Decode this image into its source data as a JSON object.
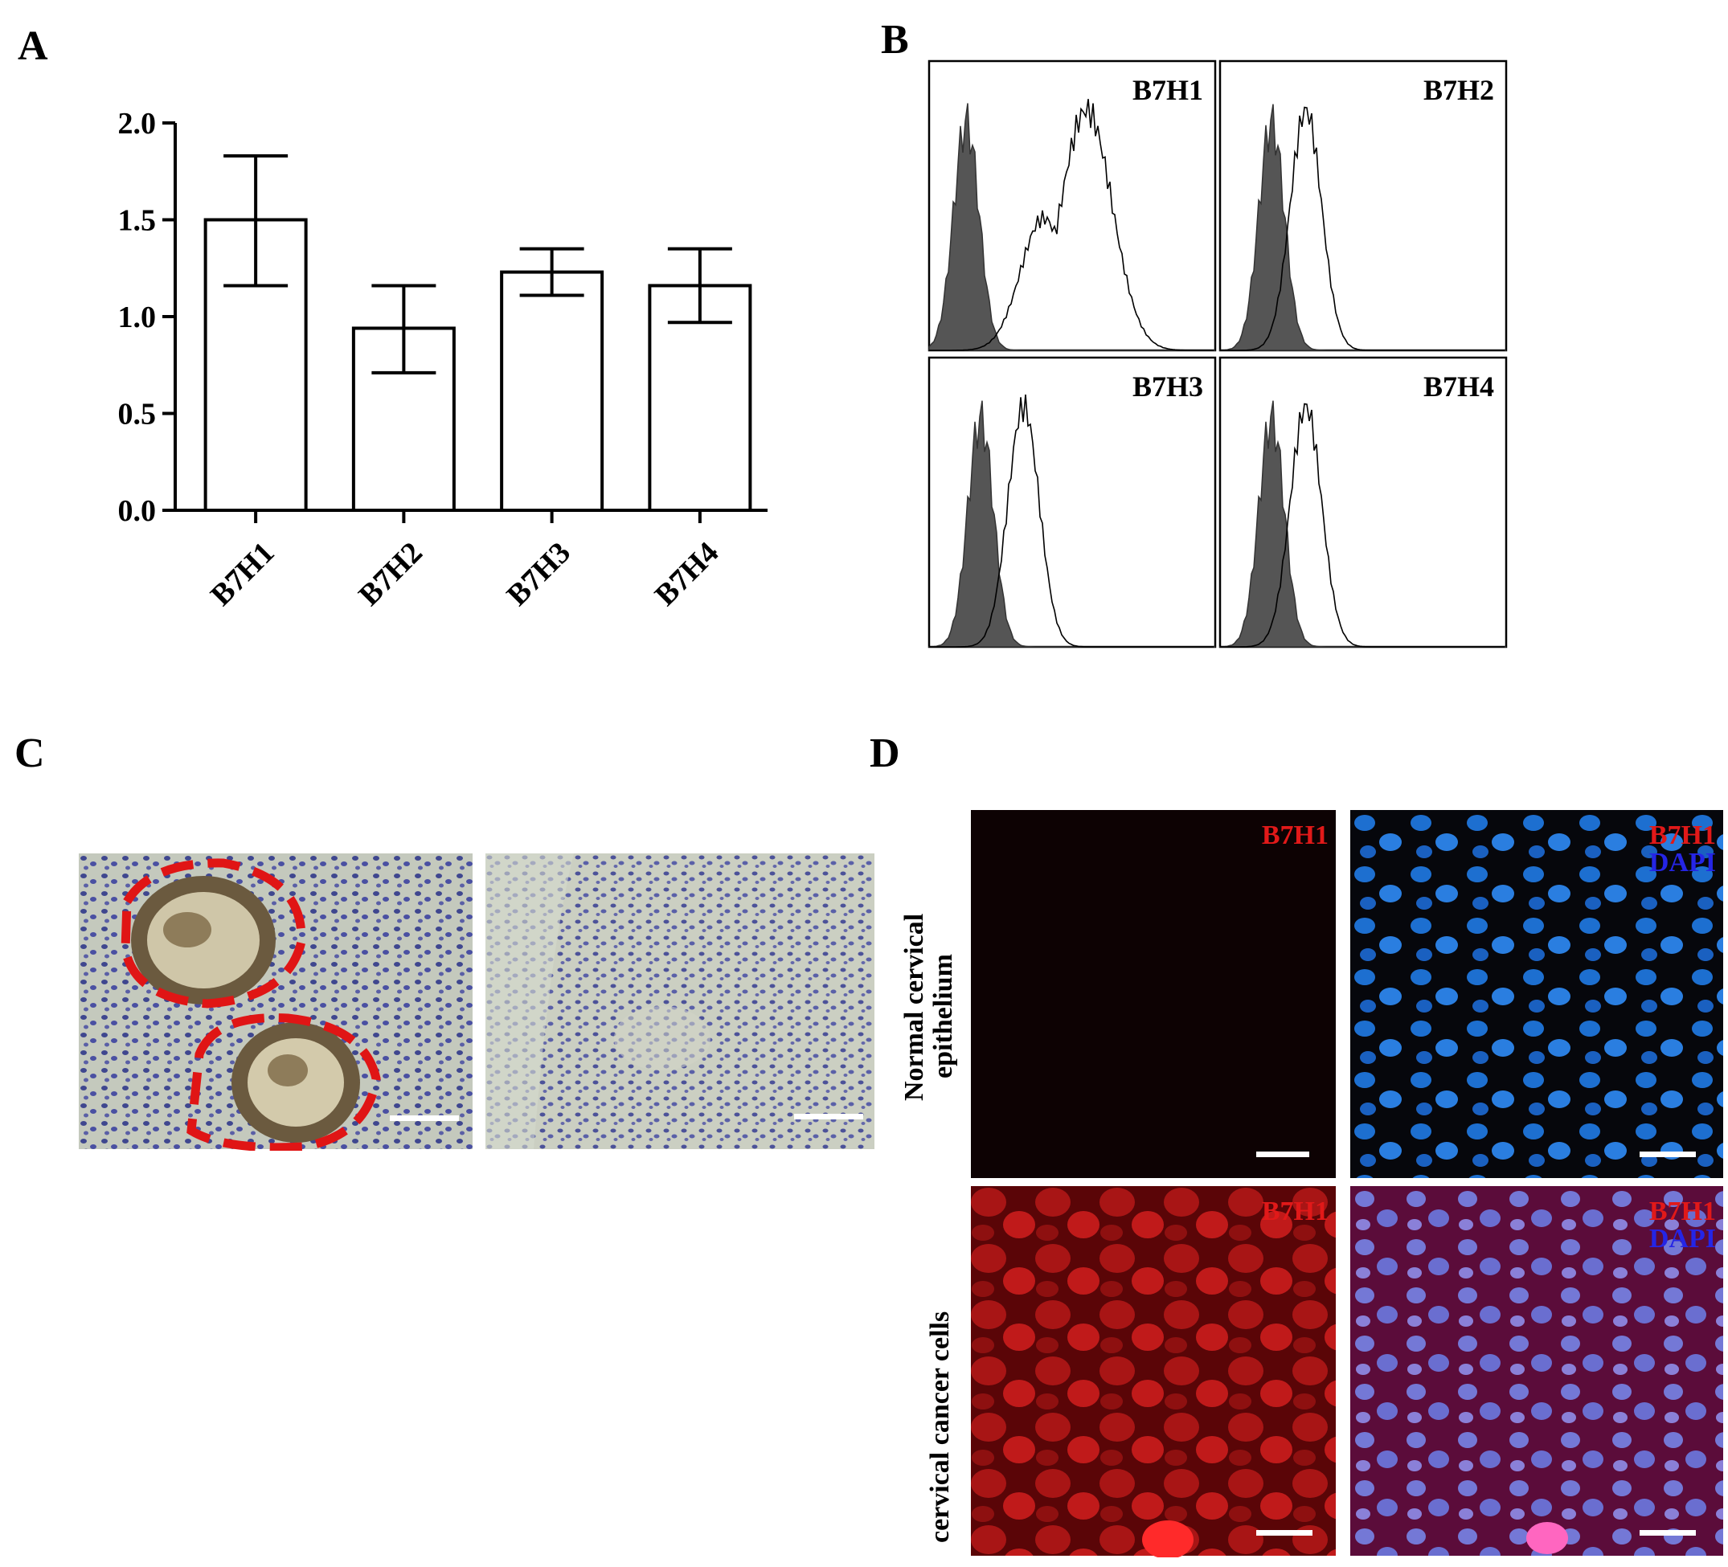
{
  "panels": {
    "a": "A",
    "b": "B",
    "c": "C",
    "d": "D"
  },
  "chart_data": [
    {
      "type": "bar",
      "categories": [
        "B7H1",
        "B7H2",
        "B7H3",
        "B7H4"
      ],
      "values": [
        1.5,
        0.94,
        1.23,
        1.16
      ],
      "error_low": [
        1.16,
        0.71,
        1.11,
        0.97
      ],
      "error_high": [
        1.83,
        1.16,
        1.35,
        1.35
      ],
      "ylim": [
        0,
        2.0
      ],
      "yticks": [
        "0.0",
        "0.5",
        "1.0",
        "1.5",
        "2.0"
      ],
      "ytick_values": [
        0,
        0.5,
        1.0,
        1.5,
        2.0
      ],
      "grid": false
    },
    {
      "type": "area",
      "histograms": [
        {
          "name": "B7H1",
          "filled_peak": 0.13,
          "open_peak": 0.55
        },
        {
          "name": "B7H2",
          "filled_peak": 0.18,
          "open_peak": 0.3
        },
        {
          "name": "B7H3",
          "filled_peak": 0.18,
          "open_peak": 0.33
        },
        {
          "name": "B7H4",
          "filled_peak": 0.18,
          "open_peak": 0.3
        }
      ],
      "grid": false
    }
  ],
  "panel_d": {
    "row_labels": [
      "Normal cervical",
      "epithelium",
      "cervical cancer cells"
    ],
    "marker": "B7H1",
    "stain": "DAPI"
  },
  "colors": {
    "red_label": "#e11919",
    "blue_label": "#2525e6",
    "hist_fill": "#555555",
    "ihc_background": "#c9cdbf",
    "ihc_nuclei": "#4a4f9c",
    "dashed_outline": "#e01515"
  }
}
